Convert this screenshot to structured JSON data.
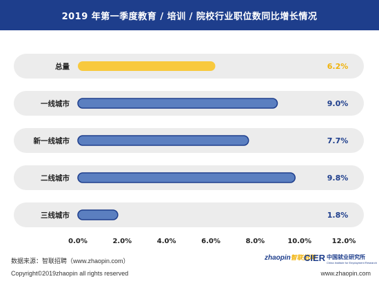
{
  "header": {
    "title": "2019 年第一季度教育 / 培训 / 院校行业职位数同比增长情况"
  },
  "chart_data": {
    "type": "bar",
    "orientation": "horizontal",
    "title": "2019 年第一季度教育 / 培训 / 院校行业职位数同比增长情况",
    "categories": [
      "总量",
      "一线城市",
      "新一线城市",
      "二线城市",
      "三线城市"
    ],
    "values": [
      6.2,
      9.0,
      7.7,
      9.8,
      1.8
    ],
    "value_labels": [
      "6.2%",
      "9.0%",
      "7.7%",
      "9.8%",
      "1.8%"
    ],
    "xlim": [
      0,
      12
    ],
    "x_ticks": [
      "0.0%",
      "2.0%",
      "4.0%",
      "6.0%",
      "8.0%",
      "10.0%",
      "12.0%"
    ],
    "grid": false,
    "colors": {
      "highlight": "#f8c93e",
      "highlight_label": "#f0b20a",
      "bar": "#5b7fc0",
      "bar_border": "#1e3e8c",
      "label": "#1e3e8c",
      "row_bg": "#ececec"
    }
  },
  "footer": {
    "source": "数据来源：智联招聘（www.zhaopin.com）",
    "copyright": "Copyright©2019zhaopin all rights reserved",
    "url": "www.zhaopin.com",
    "logos": {
      "zhaopin_en": "zhaopin",
      "zhaopin_cn": "智联招聘",
      "cier": "CIER",
      "cier_cn": "中国就业研究所",
      "cier_en": "China Institute for Employment Research"
    }
  }
}
